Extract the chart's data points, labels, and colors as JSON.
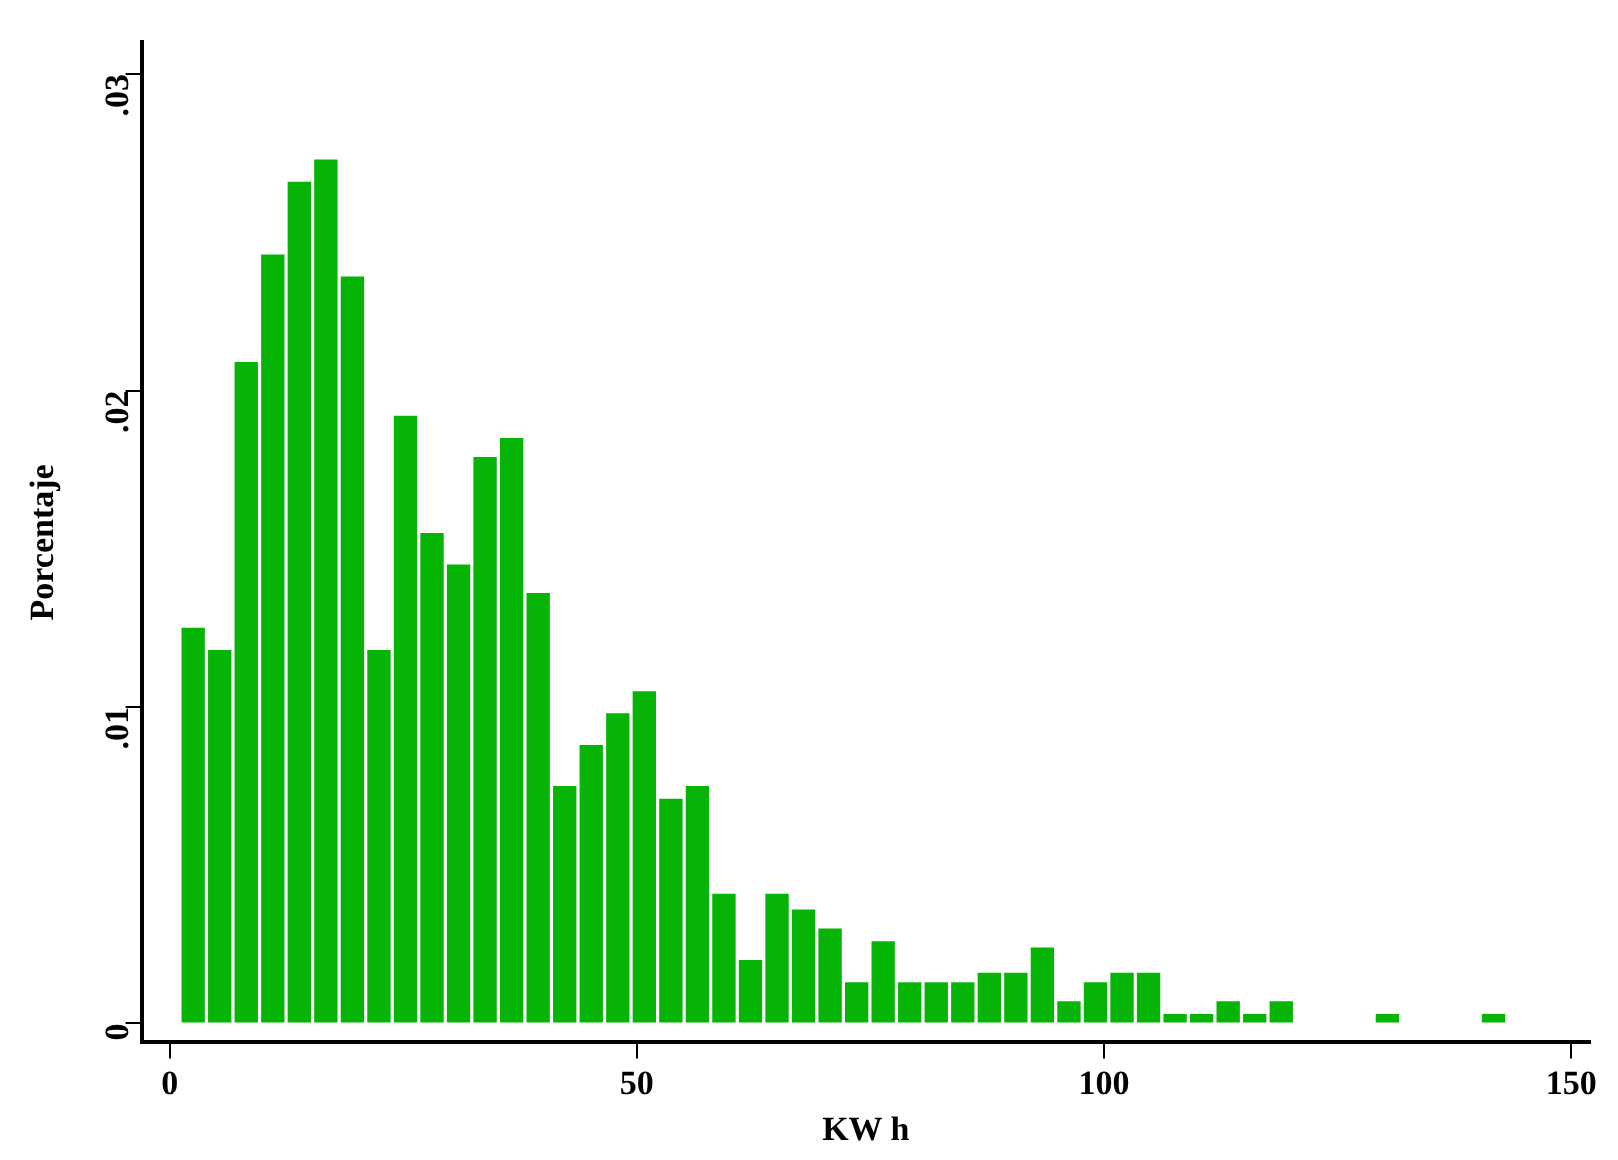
{
  "chart_data": {
    "type": "histogram",
    "xlabel": "KW h",
    "ylabel": "Porcentaje",
    "bins": [
      1.1,
      3.94,
      6.78,
      9.62,
      12.46,
      15.3,
      18.14,
      20.98,
      23.82,
      26.66,
      29.5,
      32.34,
      35.18,
      38.02,
      40.86,
      43.7,
      46.54,
      49.38,
      52.22,
      55.06,
      57.9,
      60.74,
      63.58,
      66.42,
      69.26,
      72.1,
      74.94,
      77.78,
      80.62,
      83.46,
      86.3,
      89.14,
      91.98,
      94.82,
      97.66,
      100.5,
      103.34,
      106.18,
      109.02,
      111.86,
      114.7,
      117.54,
      120.38,
      123.22,
      126.06,
      128.9,
      131.74,
      134.58,
      137.42,
      140.26,
      143.1
    ],
    "values": [
      0.0125,
      0.0118,
      0.0209,
      0.0243,
      0.0266,
      0.0273,
      0.0236,
      0.0118,
      0.0192,
      0.0155,
      0.0145,
      0.0179,
      0.0185,
      0.0136,
      0.0075,
      0.0088,
      0.0098,
      0.0105,
      0.0071,
      0.0075,
      0.0041,
      0.002,
      0.0041,
      0.0036,
      0.003,
      0.0013,
      0.0026,
      0.0013,
      0.0013,
      0.0013,
      0.0016,
      0.0016,
      0.0024,
      0.0007,
      0.0013,
      0.0016,
      0.0016,
      0.0003,
      0.0003,
      0.0007,
      0.0003,
      0.0007,
      0,
      0,
      0,
      0.0003,
      0,
      0,
      0,
      0.0003
    ],
    "color": "#06b406",
    "xlim": [
      -3,
      152
    ],
    "xticks": [
      0,
      50,
      100,
      150
    ],
    "ylim": [
      -0.0006,
      0.031
    ],
    "yticks": [
      {
        "value": 0,
        "label": "0"
      },
      {
        "value": 0.01,
        "label": ".01"
      },
      {
        "value": 0.02,
        "label": ".02"
      },
      {
        "value": 0.03,
        "label": ".03"
      }
    ],
    "grid": false,
    "legend": false
  }
}
